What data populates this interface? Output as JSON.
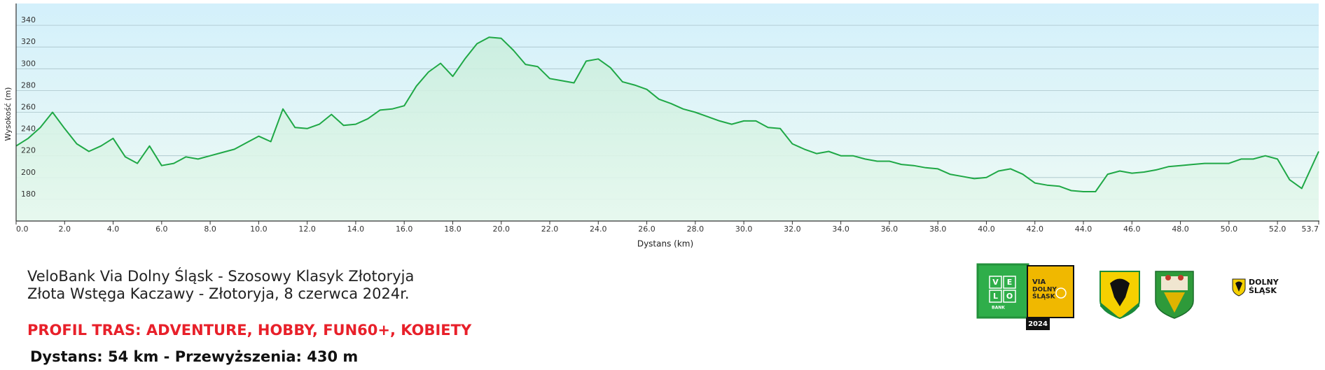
{
  "chart_data": {
    "type": "area",
    "x_label": "Dystans  (km)",
    "y_label": "Wysokość (m)",
    "x": [
      0,
      0.5,
      1,
      1.5,
      2,
      2.5,
      3,
      3.5,
      4,
      4.5,
      5,
      5.5,
      6,
      6.5,
      7,
      7.5,
      8,
      8.5,
      9,
      9.5,
      10,
      10.5,
      11,
      11.5,
      12,
      12.5,
      13,
      13.5,
      14,
      14.5,
      15,
      15.5,
      16,
      16.5,
      17,
      17.5,
      18,
      18.5,
      19,
      19.5,
      20,
      20.5,
      21,
      21.5,
      22,
      22.5,
      23,
      23.5,
      24,
      24.5,
      25,
      25.5,
      26,
      26.5,
      27,
      27.5,
      28,
      28.5,
      29,
      29.5,
      30,
      30.5,
      31,
      31.5,
      32,
      32.5,
      33,
      33.5,
      34,
      34.5,
      35,
      35.5,
      36,
      36.5,
      37,
      37.5,
      38,
      38.5,
      39,
      39.5,
      40,
      40.5,
      41,
      41.5,
      42,
      42.5,
      43,
      43.5,
      44,
      44.5,
      45,
      45.5,
      46,
      46.5,
      47,
      47.5,
      48,
      48.5,
      49,
      49.5,
      50,
      50.5,
      51,
      51.5,
      52,
      52.5,
      53,
      53.7
    ],
    "series": [
      {
        "color": "#1fa846",
        "values": [
          229,
          236,
          246,
          260,
          245,
          231,
          224,
          229,
          236,
          219,
          213,
          229,
          211,
          213,
          219,
          217,
          220,
          223,
          226,
          232,
          238,
          233,
          263,
          246,
          245,
          249,
          258,
          248,
          249,
          254,
          262,
          263,
          266,
          284,
          297,
          305,
          293,
          309,
          323,
          329,
          328,
          317,
          304,
          302,
          291,
          289,
          287,
          307,
          309,
          301,
          288,
          285,
          281,
          272,
          268,
          263,
          260,
          256,
          252,
          249,
          252,
          252,
          246,
          245,
          231,
          226,
          222,
          224,
          220,
          220,
          217,
          215,
          215,
          212,
          211,
          209,
          208,
          203,
          201,
          199,
          200,
          206,
          208,
          203,
          195,
          193,
          192,
          188,
          187,
          187,
          203,
          206,
          204,
          205,
          207,
          210,
          211,
          212,
          213,
          213,
          213,
          217,
          217,
          220,
          217,
          198,
          190,
          224
        ]
      }
    ],
    "xlim": [
      0,
      53.7
    ],
    "ylim": [
      160,
      360
    ],
    "xticks": [
      {
        "value": 0,
        "label": "0.0"
      },
      {
        "value": 2,
        "label": "2.0"
      },
      {
        "value": 4,
        "label": "4.0"
      },
      {
        "value": 6,
        "label": "6.0"
      },
      {
        "value": 8,
        "label": "8.0"
      },
      {
        "value": 10,
        "label": "10.0"
      },
      {
        "value": 12,
        "label": "12.0"
      },
      {
        "value": 14,
        "label": "14.0"
      },
      {
        "value": 16,
        "label": "16.0"
      },
      {
        "value": 18,
        "label": "18.0"
      },
      {
        "value": 20,
        "label": "20.0"
      },
      {
        "value": 22,
        "label": "22.0"
      },
      {
        "value": 24,
        "label": "24.0"
      },
      {
        "value": 26,
        "label": "26.0"
      },
      {
        "value": 28,
        "label": "28.0"
      },
      {
        "value": 30,
        "label": "30.0"
      },
      {
        "value": 32,
        "label": "32.0"
      },
      {
        "value": 34,
        "label": "34.0"
      },
      {
        "value": 36,
        "label": "36.0"
      },
      {
        "value": 38,
        "label": "38.0"
      },
      {
        "value": 40,
        "label": "40.0"
      },
      {
        "value": 42,
        "label": "42.0"
      },
      {
        "value": 44,
        "label": "44.0"
      },
      {
        "value": 46,
        "label": "46.0"
      },
      {
        "value": 48,
        "label": "48.0"
      },
      {
        "value": 50,
        "label": "50.0"
      },
      {
        "value": 52,
        "label": "52.0"
      },
      {
        "value": 53.7,
        "label": "53.7"
      }
    ],
    "yticks": [
      180,
      200,
      220,
      240,
      260,
      280,
      300,
      320,
      340
    ],
    "grid": true
  },
  "footer": {
    "title_line1": "VeloBank Via Dolny Śląsk - Szosowy Klasyk Złotoryja",
    "title_line2": "Złota Wstęga Kaczawy - Złotoryja, 8 czerwca 2024r.",
    "profile": "PROFIL TRAS: ADVENTURE, HOBBY, FUN60+, KOBIETY",
    "summary": "Dystans: 54 km - Przewyższenia: 430 m"
  },
  "logos": {
    "velo_letters": [
      "V",
      "E",
      "L",
      "O"
    ],
    "bank": "BANK",
    "via_lines": [
      "VIA",
      "DOLNY",
      "ŚLĄSK"
    ],
    "year": "2024",
    "region_lines": [
      "DOLNY",
      "ŚLĄSK"
    ]
  }
}
